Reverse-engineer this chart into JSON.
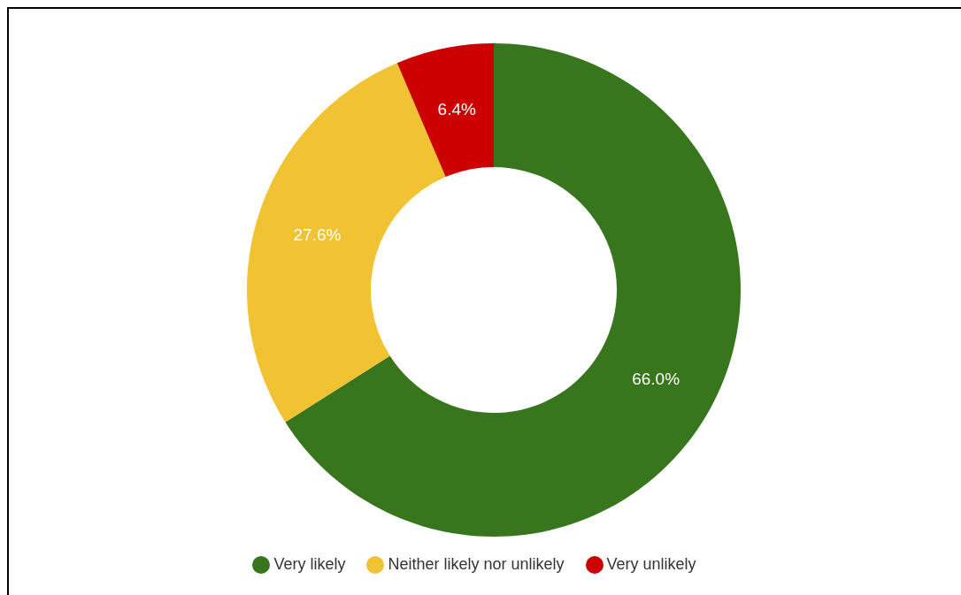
{
  "chart_data": {
    "type": "donut",
    "categories": [
      "Very likely",
      "Neither likely nor unlikely",
      "Very unlikely"
    ],
    "values": [
      66.0,
      27.6,
      6.4
    ],
    "colors": [
      "#38761d",
      "#f1c232",
      "#cc0000"
    ],
    "value_labels": [
      "66.0%",
      "27.6%",
      "6.4%"
    ],
    "legend": "bottom"
  }
}
